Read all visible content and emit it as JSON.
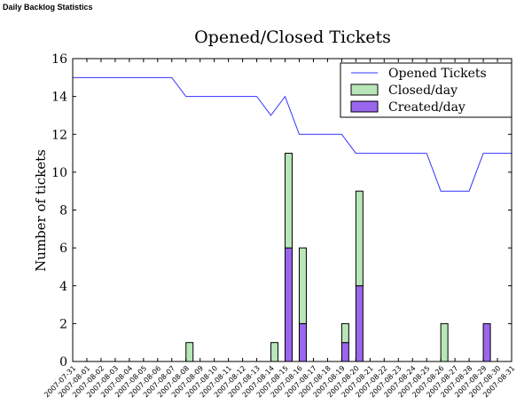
{
  "header": "Daily Backlog Statistics",
  "chart_data": {
    "type": "bar",
    "title": "Opened/Closed Tickets",
    "y_label": "Number of tickets",
    "x": [
      "2007-07-31",
      "2007-08-01",
      "2007-08-02",
      "2007-08-03",
      "2007-08-04",
      "2007-08-05",
      "2007-08-06",
      "2007-08-07",
      "2007-08-08",
      "2007-08-09",
      "2007-08-10",
      "2007-08-11",
      "2007-08-12",
      "2007-08-13",
      "2007-08-14",
      "2007-08-15",
      "2007-08-16",
      "2007-08-17",
      "2007-08-18",
      "2007-08-19",
      "2007-08-20",
      "2007-08-21",
      "2007-08-22",
      "2007-08-23",
      "2007-08-24",
      "2007-08-25",
      "2007-08-26",
      "2007-08-27",
      "2007-08-28",
      "2007-08-29",
      "2007-08-30",
      "2007-08-31"
    ],
    "series": [
      {
        "name": "Opened Tickets",
        "type": "line",
        "color": "#3333ff",
        "values": [
          15,
          15,
          15,
          15,
          15,
          15,
          15,
          15,
          14,
          14,
          14,
          14,
          14,
          14,
          13,
          14,
          12,
          12,
          12,
          12,
          11,
          11,
          11,
          11,
          11,
          11,
          9,
          9,
          9,
          11,
          11,
          11
        ]
      },
      {
        "name": "Closed/day",
        "type": "bar",
        "stack": "day",
        "color": "#b8e6b8",
        "values": [
          0,
          0,
          0,
          0,
          0,
          0,
          0,
          0,
          1,
          0,
          0,
          0,
          0,
          0,
          1,
          5,
          4,
          0,
          0,
          1,
          5,
          0,
          0,
          0,
          0,
          0,
          2,
          0,
          0,
          0,
          0,
          0
        ]
      },
      {
        "name": "Created/day",
        "type": "bar",
        "stack": "day",
        "color": "#9a66ee",
        "values": [
          0,
          0,
          0,
          0,
          0,
          0,
          0,
          0,
          0,
          0,
          0,
          0,
          0,
          0,
          0,
          6,
          2,
          0,
          0,
          1,
          4,
          0,
          0,
          0,
          0,
          0,
          0,
          0,
          0,
          2,
          0,
          0
        ]
      }
    ],
    "ylim": [
      0,
      16
    ],
    "yticks": [
      0,
      2,
      4,
      6,
      8,
      10,
      12,
      14,
      16
    ],
    "legend": "upper right"
  }
}
